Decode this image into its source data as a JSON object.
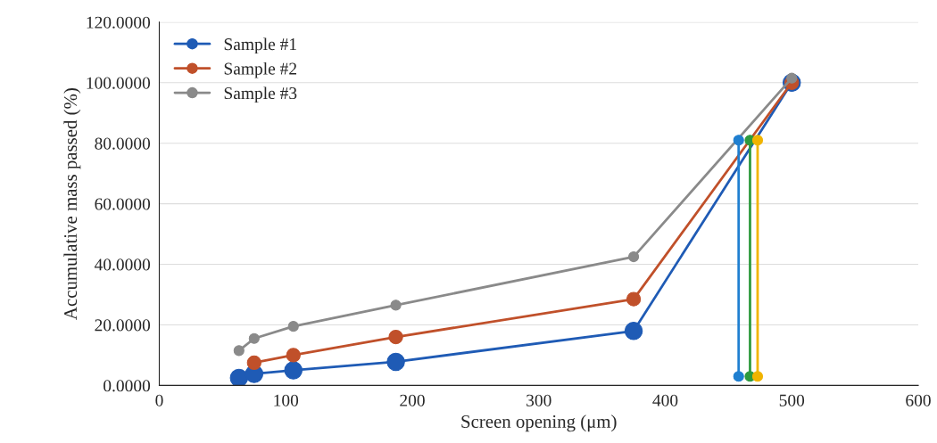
{
  "chart_data": {
    "type": "line",
    "xlabel": "Screen opening (μm)",
    "ylabel": "Accumulative mass passed (%)",
    "series": [
      {
        "name": "Sample #1",
        "color": "#1f5bb5",
        "x": [
          63,
          75,
          106,
          187,
          375,
          500
        ],
        "values": [
          2.5,
          3.8,
          5,
          7.8,
          18,
          100
        ]
      },
      {
        "name": "Sample #2",
        "color": "#c0502a",
        "x": [
          75,
          106,
          187,
          375,
          500
        ],
        "values": [
          7.5,
          10,
          16,
          28.5,
          100
        ]
      },
      {
        "name": "Sample #3",
        "color": "#8a8a8a",
        "x": [
          63,
          75,
          106,
          187,
          375,
          500
        ],
        "values": [
          11.5,
          15.5,
          19.5,
          26.5,
          42.5,
          101.5
        ]
      },
      {
        "color": "#1f7fd0",
        "x": [
          458,
          458
        ],
        "values": [
          3,
          81
        ]
      },
      {
        "color": "#2e9a3e",
        "x": [
          467,
          467
        ],
        "values": [
          3,
          81
        ]
      },
      {
        "color": "#f0b400",
        "x": [
          473,
          473
        ],
        "values": [
          3,
          81
        ]
      }
    ],
    "xlim": [
      0,
      600
    ],
    "xticks": [
      0,
      100,
      200,
      300,
      400,
      500,
      600
    ],
    "ylim": [
      0,
      120
    ],
    "yticks": [
      {
        "value": 0,
        "label": "0.0000"
      },
      {
        "value": 20,
        "label": "20.0000"
      },
      {
        "value": 40,
        "label": "40.0000"
      },
      {
        "value": 60,
        "label": "60.0000"
      },
      {
        "value": 80,
        "label": "80.0000"
      },
      {
        "value": 100,
        "label": "100.0000"
      },
      {
        "value": 120,
        "label": "120.0000"
      }
    ],
    "grid": "y",
    "legend": "top left",
    "marker": "circle",
    "line_style": "solid"
  }
}
